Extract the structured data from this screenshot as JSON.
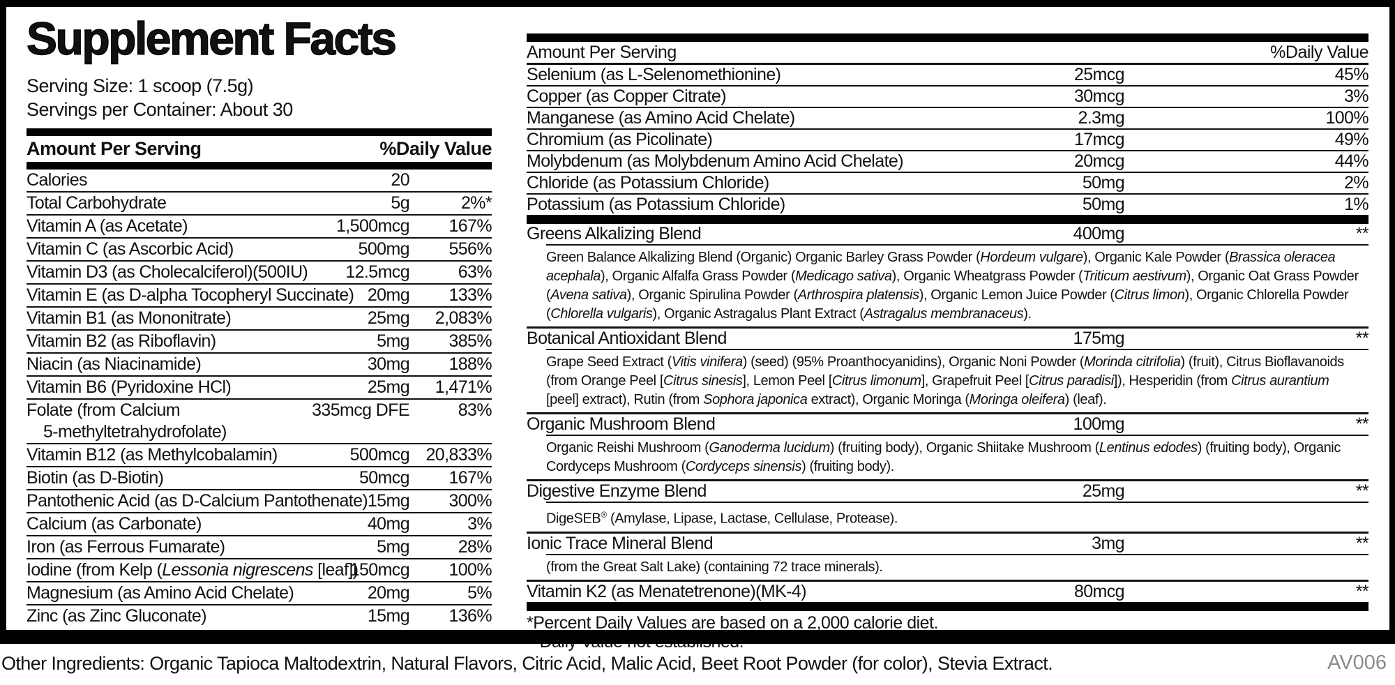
{
  "label": {
    "title": "Supplement Facts",
    "serving_size": "Serving Size: 1 scoop (7.5g)",
    "servings_per_container": "Servings per Container: About 30"
  },
  "headers": {
    "amount_per_serving": "Amount Per Serving",
    "daily_value": "%Daily Value"
  },
  "left_table": {
    "rows": [
      {
        "name": [
          {
            "t": "Calories"
          }
        ],
        "amount": "20",
        "dv": ""
      },
      {
        "name": [
          {
            "t": "Total Carbohydrate"
          }
        ],
        "amount": "5g",
        "dv": "2%*"
      },
      {
        "name": [
          {
            "t": "Vitamin A (as Acetate)"
          }
        ],
        "amount": "1,500mcg",
        "dv": "167%"
      },
      {
        "name": [
          {
            "t": "Vitamin C (as Ascorbic Acid)"
          }
        ],
        "amount": "500mg",
        "dv": "556%"
      },
      {
        "name": [
          {
            "t": "Vitamin D3 (as Cholecalciferol)(500IU)"
          }
        ],
        "amount": "12.5mcg",
        "dv": "63%"
      },
      {
        "name": [
          {
            "t": "Vitamin E (as D-alpha Tocopheryl Succinate)"
          }
        ],
        "amount": "20mg",
        "dv": "133%"
      },
      {
        "name": [
          {
            "t": "Vitamin B1 (as Mononitrate)"
          }
        ],
        "amount": "25mg",
        "dv": "2,083%"
      },
      {
        "name": [
          {
            "t": "Vitamin B2 (as Riboflavin)"
          }
        ],
        "amount": "5mg",
        "dv": "385%"
      },
      {
        "name": [
          {
            "t": "Niacin (as Niacinamide)"
          }
        ],
        "amount": "30mg",
        "dv": "188%"
      },
      {
        "name": [
          {
            "t": "Vitamin B6 (Pyridoxine HCl)"
          }
        ],
        "amount": "25mg",
        "dv": "1,471%"
      },
      {
        "name": [
          {
            "t": "Folate (from Calcium"
          }
        ],
        "name2": "5-methyltetrahydrofolate)",
        "amount": "335mcg DFE",
        "dv": "83%"
      },
      {
        "name": [
          {
            "t": "Vitamin B12 (as Methylcobalamin)"
          }
        ],
        "amount": "500mcg",
        "dv": "20,833%"
      },
      {
        "name": [
          {
            "t": "Biotin (as D-Biotin)"
          }
        ],
        "amount": "50mcg",
        "dv": "167%"
      },
      {
        "name": [
          {
            "t": "Pantothenic Acid (as D-Calcium Pantothenate)"
          }
        ],
        "amount": "15mg",
        "dv": "300%"
      },
      {
        "name": [
          {
            "t": "Calcium (as Carbonate)"
          }
        ],
        "amount": "40mg",
        "dv": "3%"
      },
      {
        "name": [
          {
            "t": "Iron (as Ferrous Fumarate)"
          }
        ],
        "amount": "5mg",
        "dv": "28%"
      },
      {
        "name": [
          {
            "t": "Iodine (from Kelp ("
          },
          {
            "t": "Lessonia nigrescens",
            "i": true
          },
          {
            "t": " [leaf])"
          }
        ],
        "amount": "150mcg",
        "dv": "100%"
      },
      {
        "name": [
          {
            "t": "Magnesium (as Amino Acid Chelate)"
          }
        ],
        "amount": "20mg",
        "dv": "5%"
      },
      {
        "name": [
          {
            "t": "Zinc (as Zinc Gluconate)"
          }
        ],
        "amount": "15mg",
        "dv": "136%"
      }
    ]
  },
  "right_table": {
    "mineral_rows": [
      {
        "name": [
          {
            "t": "Selenium (as L-Selenomethionine)"
          }
        ],
        "amount": "25mcg",
        "dv": "45%"
      },
      {
        "name": [
          {
            "t": "Copper (as Copper Citrate)"
          }
        ],
        "amount": "30mcg",
        "dv": "3%"
      },
      {
        "name": [
          {
            "t": "Manganese (as Amino Acid Chelate)"
          }
        ],
        "amount": "2.3mg",
        "dv": "100%"
      },
      {
        "name": [
          {
            "t": "Chromium (as Picolinate)"
          }
        ],
        "amount": "17mcg",
        "dv": "49%"
      },
      {
        "name": [
          {
            "t": "Molybdenum (as Molybdenum Amino Acid Chelate)"
          }
        ],
        "amount": "20mcg",
        "dv": "44%"
      },
      {
        "name": [
          {
            "t": "Chloride (as Potassium Chloride)"
          }
        ],
        "amount": "50mg",
        "dv": "2%"
      },
      {
        "name": [
          {
            "t": "Potassium (as Potassium Chloride)"
          }
        ],
        "amount": "50mg",
        "dv": "1%"
      }
    ],
    "blend_rows": [
      {
        "name": [
          {
            "t": "Greens Alkalizing Blend"
          }
        ],
        "amount": "400mg",
        "dv": "**",
        "desc": [
          {
            "t": "Green Balance Alkalizing Blend (Organic) Organic Barley Grass Powder ("
          },
          {
            "t": "Hordeum vulgare",
            "i": true
          },
          {
            "t": "), Organic Kale Powder ("
          },
          {
            "t": "Brassica oleracea acephala",
            "i": true
          },
          {
            "t": "), Organic Alfalfa Grass Powder ("
          },
          {
            "t": "Medicago sativa",
            "i": true
          },
          {
            "t": "), Organic Wheatgrass Powder ("
          },
          {
            "t": "Triticum aestivum",
            "i": true
          },
          {
            "t": "), Organic Oat Grass Powder ("
          },
          {
            "t": "Avena sativa",
            "i": true
          },
          {
            "t": "), Organic Spirulina Powder ("
          },
          {
            "t": "Arthrospira platensis",
            "i": true
          },
          {
            "t": "), Organic Lemon Juice Powder ("
          },
          {
            "t": "Citrus limon",
            "i": true
          },
          {
            "t": "), Organic Chlorella Powder ("
          },
          {
            "t": "Chlorella vulgaris",
            "i": true
          },
          {
            "t": "), Organic Astragalus Plant Extract ("
          },
          {
            "t": "Astragalus membranaceus",
            "i": true
          },
          {
            "t": ")."
          }
        ]
      },
      {
        "name": [
          {
            "t": "Botanical Antioxidant Blend"
          }
        ],
        "amount": "175mg",
        "dv": "**",
        "desc": [
          {
            "t": "Grape Seed Extract ("
          },
          {
            "t": "Vitis vinifera",
            "i": true
          },
          {
            "t": ") (seed) (95% Proanthocyanidins), Organic Noni Powder ("
          },
          {
            "t": "Morinda citrifolia",
            "i": true
          },
          {
            "t": ") (fruit), Citrus Bioflavanoids (from Orange Peel ["
          },
          {
            "t": "Citrus sinesis",
            "i": true
          },
          {
            "t": "], Lemon Peel ["
          },
          {
            "t": "Citrus limonum",
            "i": true
          },
          {
            "t": "], Grapefruit Peel ["
          },
          {
            "t": "Citrus paradisi",
            "i": true
          },
          {
            "t": "]), Hesperidin (from "
          },
          {
            "t": "Citrus aurantium",
            "i": true
          },
          {
            "t": " [peel] extract), Rutin (from "
          },
          {
            "t": "Sophora japonica",
            "i": true
          },
          {
            "t": " extract), Organic Moringa ("
          },
          {
            "t": "Moringa oleifera",
            "i": true
          },
          {
            "t": ") (leaf)."
          }
        ]
      },
      {
        "name": [
          {
            "t": "Organic Mushroom Blend"
          }
        ],
        "amount": "100mg",
        "dv": "**",
        "desc": [
          {
            "t": "Organic Reishi Mushroom ("
          },
          {
            "t": "Ganoderma lucidum",
            "i": true
          },
          {
            "t": ") (fruiting body), Organic Shiitake Mushroom ("
          },
          {
            "t": "Lentinus edodes",
            "i": true
          },
          {
            "t": ") (fruiting body), Organic Cordyceps Mushroom ("
          },
          {
            "t": "Cordyceps sinensis",
            "i": true
          },
          {
            "t": ") (fruiting body)."
          }
        ]
      },
      {
        "name": [
          {
            "t": "Digestive Enzyme Blend"
          }
        ],
        "amount": "25mg",
        "dv": "**",
        "desc": [
          {
            "t": "DigeSEB"
          },
          {
            "t": "®",
            "sup": true
          },
          {
            "t": " (Amylase, Lipase, Lactase, Cellulase, Protease)."
          }
        ]
      },
      {
        "name": [
          {
            "t": "Ionic Trace Mineral Blend"
          }
        ],
        "amount": "3mg",
        "dv": "**",
        "desc": [
          {
            "t": "(from the Great Salt Lake) (containing 72 trace minerals)."
          }
        ]
      },
      {
        "name": [
          {
            "t": "Vitamin K2 (as Menatetrenone)(MK-4)"
          }
        ],
        "amount": "80mcg",
        "dv": "**"
      }
    ]
  },
  "footnotes": {
    "line1": "*Percent Daily Values are based on a 2,000 calorie diet.",
    "line2": "**Daily Value not established."
  },
  "bottom": {
    "other_ingredients": "Other Ingredients: Organic Tapioca Maltodextrin, Natural Flavors, Citric Acid, Malic Acid, Beet Root Powder (for color), Stevia Extract.",
    "code": "AV006"
  },
  "colors": {
    "text": "#111111",
    "rule": "#000000",
    "code_gray": "#8a8a8a"
  }
}
